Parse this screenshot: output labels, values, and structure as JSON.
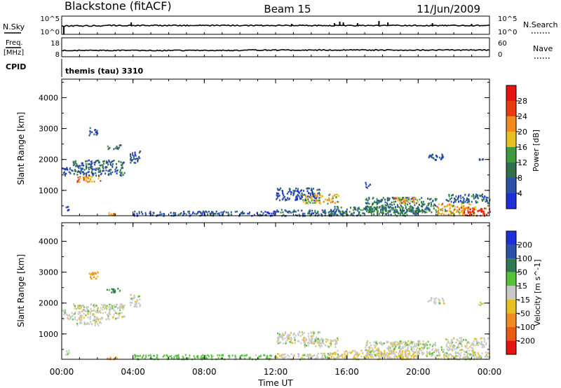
{
  "header": {
    "station": "Blackstone (fitACF)",
    "beam": "Beam 15",
    "date": "11/Jun/2009"
  },
  "nsky_panel": {
    "left_label": "N.Sky",
    "right_label": "N.Search",
    "left_ticks": [
      "10^5",
      "10^0"
    ],
    "right_ticks": [
      "10^5",
      "10^0"
    ]
  },
  "freq_panel": {
    "left_label_1": "Freq.",
    "left_label_2": "[MHz]",
    "right_label": "Nave",
    "left_ticks": [
      "18",
      "8"
    ],
    "right_ticks": [
      "60",
      "0"
    ]
  },
  "cpid": {
    "label": "CPID",
    "value": "themis (tau) 3310"
  },
  "time_axis": {
    "title": "Time UT",
    "ticks": [
      "00:00",
      "04:00",
      "08:00",
      "12:00",
      "16:00",
      "20:00",
      "00:00"
    ]
  },
  "colors": {
    "power_scale": [
      "#1f2fd6",
      "#2c52a8",
      "#2f6f4a",
      "#3d9a3d",
      "#e8c020",
      "#f08c1e",
      "#ea3a12",
      "#e61410"
    ],
    "velocity_scale": [
      "#1f2fd6",
      "#2c52a8",
      "#2f7a55",
      "#56c23a",
      "#c8c8c4",
      "#e8c020",
      "#f08c1e",
      "#ea5a14",
      "#e61410"
    ],
    "ground_scatter": "#c8c8c4"
  },
  "chart_data": [
    {
      "type": "heatmap",
      "title": "",
      "xlabel": "Time UT",
      "ylabel": "Slant Range [km]",
      "colorbar_label": "Power [dB]",
      "colorbar_ticks": [
        "4",
        "8",
        "12",
        "16",
        "20",
        "24",
        "28"
      ],
      "xlim_hours": [
        0,
        24
      ],
      "ylim_km": [
        180,
        4600
      ],
      "y_ticks": [
        "1000",
        "2000",
        "3000",
        "4000"
      ],
      "scatter_regions": [
        {
          "t": [
            0.0,
            0.6
          ],
          "r": [
            1500,
            1800
          ],
          "power": 6
        },
        {
          "t": [
            0.2,
            0.4
          ],
          "r": [
            300,
            500
          ],
          "power": 5
        },
        {
          "t": [
            0.8,
            2.2
          ],
          "r": [
            1300,
            1500
          ],
          "power": 22
        },
        {
          "t": [
            0.6,
            3.5
          ],
          "r": [
            1500,
            2000
          ],
          "power": 8
        },
        {
          "t": [
            1.5,
            2.0
          ],
          "r": [
            2800,
            3050
          ],
          "power": 6
        },
        {
          "t": [
            2.5,
            3.3
          ],
          "r": [
            2350,
            2500
          ],
          "power": 10
        },
        {
          "t": [
            3.8,
            4.4
          ],
          "r": [
            1900,
            2300
          ],
          "power": 6
        },
        {
          "t": [
            2.5,
            3.3
          ],
          "r": [
            200,
            300
          ],
          "power": 20
        },
        {
          "t": [
            4.0,
            12.0
          ],
          "r": [
            200,
            350
          ],
          "power": 6
        },
        {
          "t": [
            12.0,
            16.0
          ],
          "r": [
            200,
            400
          ],
          "power": 8
        },
        {
          "t": [
            12.0,
            14.5
          ],
          "r": [
            700,
            1100
          ],
          "power": 5
        },
        {
          "t": [
            13.5,
            15.5
          ],
          "r": [
            600,
            900
          ],
          "power": 18
        },
        {
          "t": [
            15.0,
            20.0
          ],
          "r": [
            200,
            500
          ],
          "power": 10
        },
        {
          "t": [
            17.0,
            21.0
          ],
          "r": [
            300,
            800
          ],
          "power": 10
        },
        {
          "t": [
            18.5,
            20.0
          ],
          "r": [
            600,
            800
          ],
          "power": 20
        },
        {
          "t": [
            17.0,
            17.3
          ],
          "r": [
            1100,
            1300
          ],
          "power": 5
        },
        {
          "t": [
            20.5,
            21.5
          ],
          "r": [
            2000,
            2200
          ],
          "power": 5
        },
        {
          "t": [
            21.0,
            23.2
          ],
          "r": [
            200,
            600
          ],
          "power": 20
        },
        {
          "t": [
            21.5,
            24.0
          ],
          "r": [
            600,
            900
          ],
          "power": 8
        },
        {
          "t": [
            22.5,
            24.0
          ],
          "r": [
            200,
            450
          ],
          "power": 28
        },
        {
          "t": [
            23.3,
            23.7
          ],
          "r": [
            1950,
            2050
          ],
          "power": 6
        }
      ]
    },
    {
      "type": "heatmap",
      "title": "",
      "xlabel": "Time UT",
      "ylabel": "Slant Range [km]",
      "colorbar_label": "Velocity [m s^-1]",
      "colorbar_ticks": [
        "200",
        "100",
        "50",
        "15",
        "-15",
        "-50",
        "-100",
        "-200"
      ],
      "xlim_hours": [
        0,
        24
      ],
      "ylim_km": [
        180,
        4600
      ],
      "y_ticks": [
        "1000",
        "2000",
        "3000",
        "4000"
      ],
      "scatter_regions": [
        {
          "t": [
            0.0,
            0.6
          ],
          "r": [
            1500,
            1800
          ],
          "velocity": 0
        },
        {
          "t": [
            0.2,
            0.4
          ],
          "r": [
            300,
            500
          ],
          "velocity": 0
        },
        {
          "t": [
            0.8,
            2.2
          ],
          "r": [
            1300,
            1500
          ],
          "velocity": 0
        },
        {
          "t": [
            0.6,
            3.5
          ],
          "r": [
            1500,
            2000
          ],
          "velocity": 0
        },
        {
          "t": [
            1.5,
            2.0
          ],
          "r": [
            2800,
            3050
          ],
          "velocity": -60
        },
        {
          "t": [
            2.5,
            3.3
          ],
          "r": [
            2350,
            2500
          ],
          "velocity": 60
        },
        {
          "t": [
            3.8,
            4.4
          ],
          "r": [
            1900,
            2300
          ],
          "velocity": 0
        },
        {
          "t": [
            2.5,
            3.3
          ],
          "r": [
            200,
            300
          ],
          "velocity": -60
        },
        {
          "t": [
            4.0,
            12.0
          ],
          "r": [
            200,
            350
          ],
          "velocity": 30
        },
        {
          "t": [
            12.0,
            16.0
          ],
          "r": [
            200,
            400
          ],
          "velocity": 0
        },
        {
          "t": [
            12.0,
            14.5
          ],
          "r": [
            700,
            1100
          ],
          "velocity": 0
        },
        {
          "t": [
            13.5,
            15.5
          ],
          "r": [
            600,
            900
          ],
          "velocity": 0
        },
        {
          "t": [
            15.0,
            20.0
          ],
          "r": [
            200,
            500
          ],
          "velocity": -20
        },
        {
          "t": [
            17.0,
            21.0
          ],
          "r": [
            300,
            800
          ],
          "velocity": 0
        },
        {
          "t": [
            18.5,
            20.0
          ],
          "r": [
            600,
            800
          ],
          "velocity": 0
        },
        {
          "t": [
            20.5,
            21.5
          ],
          "r": [
            2000,
            2200
          ],
          "velocity": 0
        },
        {
          "t": [
            21.0,
            23.2
          ],
          "r": [
            200,
            600
          ],
          "velocity": 0
        },
        {
          "t": [
            21.5,
            24.0
          ],
          "r": [
            600,
            900
          ],
          "velocity": 0
        },
        {
          "t": [
            22.5,
            24.0
          ],
          "r": [
            200,
            450
          ],
          "velocity": 0
        },
        {
          "t": [
            23.3,
            23.7
          ],
          "r": [
            1950,
            2050
          ],
          "velocity": 0
        }
      ]
    }
  ]
}
